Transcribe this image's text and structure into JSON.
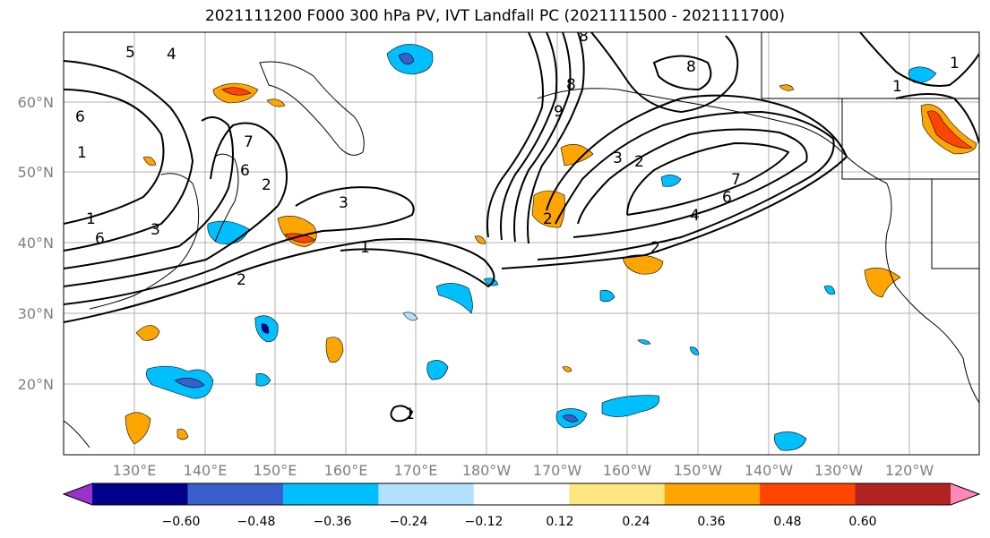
{
  "title": "2021111200 F000 300 hPa PV, IVT Landfall PC (2021111500 - 2021111700)",
  "lat_labels": [
    "60°N",
    "50°N",
    "40°N",
    "30°N",
    "20°N"
  ],
  "lon_labels": [
    "130°E",
    "140°E",
    "150°E",
    "160°E",
    "170°E",
    "180°W",
    "170°W",
    "160°W",
    "150°W",
    "140°W",
    "130°W",
    "120°W"
  ],
  "colorbar": {
    "ticks": [
      "−0.60",
      "−0.48",
      "−0.36",
      "−0.24",
      "−0.12",
      "0.12",
      "0.24",
      "0.36",
      "0.48",
      "0.60"
    ],
    "colors": [
      "#9932cc",
      "#00008b",
      "#3a5fcd",
      "#00bfff",
      "#b2e1ff",
      "#ffffff",
      "#ffe680",
      "#ffa500",
      "#ff4500",
      "#b22222",
      "#ff88b8"
    ]
  },
  "contour_labels": [
    "5",
    "4",
    "6",
    "1",
    "2",
    "3",
    "6",
    "7",
    "2",
    "3",
    "8",
    "8",
    "1",
    "3",
    "2",
    "2",
    "4",
    "7",
    "6",
    "1",
    "2",
    "1",
    "8",
    "9",
    "6",
    "1",
    "1"
  ]
}
